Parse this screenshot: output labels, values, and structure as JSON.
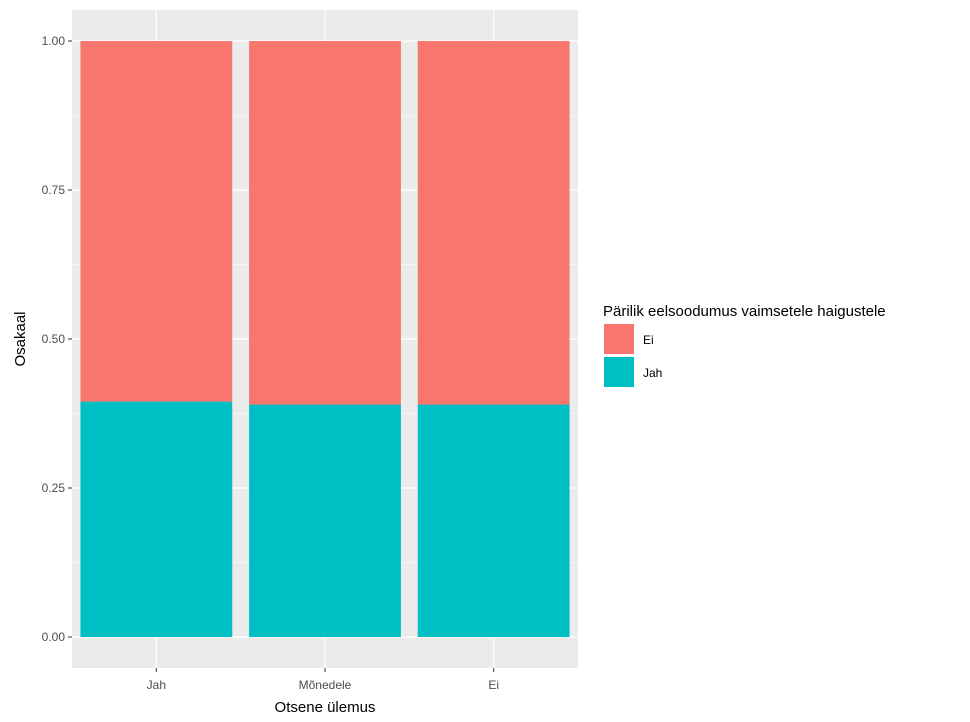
{
  "chart_data": {
    "type": "bar",
    "stacked": true,
    "categories": [
      "Jah",
      "Mõnedele",
      "Ei"
    ],
    "series": [
      {
        "name": "Ei",
        "color": "#F8766D",
        "values": [
          0.605,
          0.61,
          0.61
        ]
      },
      {
        "name": "Jah",
        "color": "#00BFC4",
        "values": [
          0.395,
          0.39,
          0.39
        ]
      }
    ],
    "xlabel": "Otsene ülemus",
    "ylabel": "Osakaal",
    "ylim": [
      0,
      1
    ],
    "yticks": [
      "0.00",
      "0.25",
      "0.50",
      "0.75",
      "1.00"
    ],
    "legend_title": "Pärilik eelsoodumus vaimsetele haigustele",
    "legend_position": "right",
    "grid": true,
    "panel_color": "#EBEBEB"
  }
}
